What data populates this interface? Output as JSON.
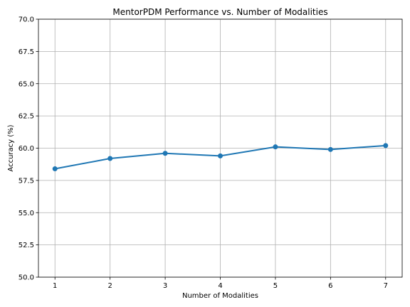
{
  "chart_data": {
    "type": "line",
    "title": "MentorPDM Performance vs. Number of Modalities",
    "xlabel": "Number of Modalities",
    "ylabel": "Accuracy (%)",
    "x": [
      1,
      2,
      3,
      4,
      5,
      6,
      7
    ],
    "xlim": [
      0.7,
      7.3
    ],
    "ylim": [
      50.0,
      70.0
    ],
    "xticks": [
      "1",
      "2",
      "3",
      "4",
      "5",
      "6",
      "7"
    ],
    "yticks": [
      "50.0",
      "52.5",
      "55.0",
      "57.5",
      "60.0",
      "62.5",
      "65.0",
      "67.5",
      "70.0"
    ],
    "grid": true,
    "series": [
      {
        "values": [
          58.4,
          59.2,
          59.6,
          59.4,
          60.1,
          59.9,
          60.2
        ],
        "color": "#1f77b4",
        "marker": "circle"
      }
    ]
  }
}
